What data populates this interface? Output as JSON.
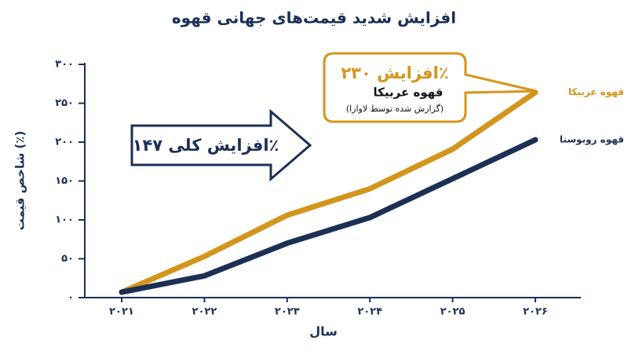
{
  "chart_data": {
    "type": "line",
    "title": "افزایش شدید قیمت‌های جهانی قهوه",
    "x_label": "سال",
    "y_label": "شاخص قیمت (٪)",
    "categories": [
      "۲۰۲۱",
      "۲۰۲۲",
      "۲۰۲۳",
      "۲۰۲۴",
      "۲۰۲۵",
      "۲۰۲۶"
    ],
    "series": [
      {
        "name": "قهوه عربیکا",
        "color": "#d4951c",
        "values": [
          7,
          53,
          106,
          140,
          191,
          264
        ]
      },
      {
        "name": "قهوه روبوستا",
        "color": "#1c2f55",
        "values": [
          7,
          28,
          70,
          103,
          153,
          203
        ]
      }
    ],
    "ylim": [
      0,
      300
    ],
    "yticks": [
      {
        "value": 0,
        "label": "۰"
      },
      {
        "value": 50,
        "label": "۵۰"
      },
      {
        "value": 100,
        "label": "۱۰۰"
      },
      {
        "value": 150,
        "label": "۱۵۰"
      },
      {
        "value": 200,
        "label": "۲۰۰"
      },
      {
        "value": 250,
        "label": "۲۵۰"
      },
      {
        "value": 300,
        "label": "۳۰۰"
      }
    ],
    "grid": false,
    "callout": [
      "افزایش ۲۳۰٪",
      "قهوه عربیکا",
      "(گزارش شده توسط لاوازا)"
    ],
    "arrow_label": "افزایش کلی ۱۴۷٪"
  }
}
